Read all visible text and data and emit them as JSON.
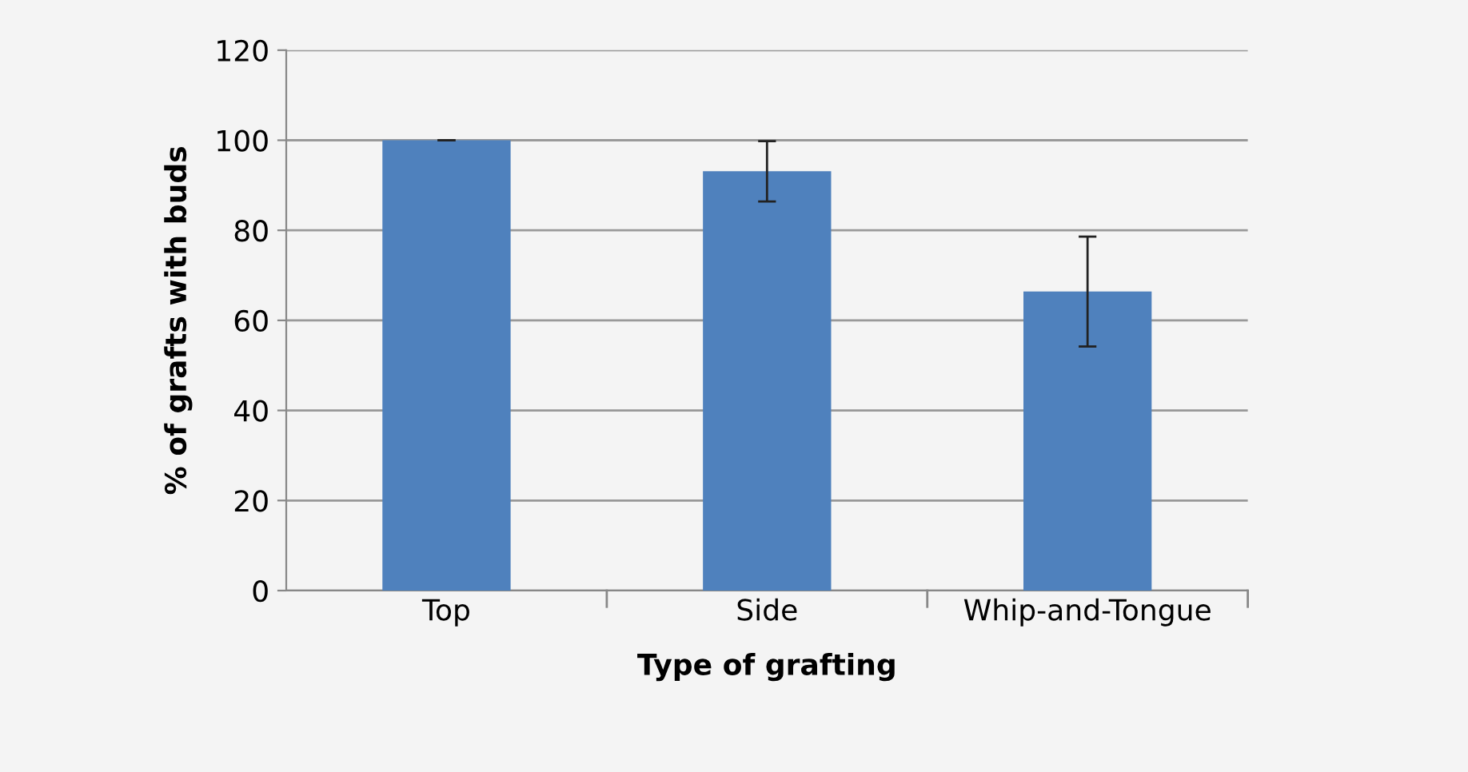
{
  "chart_data": {
    "type": "bar",
    "xlabel": "Type of grafting",
    "ylabel": "% of grafts with buds",
    "categories": [
      "Top",
      "Side",
      "Whip-and-Tongue"
    ],
    "values": [
      100,
      93.1,
      66.4
    ],
    "errors": [
      0,
      6.7,
      12.2
    ],
    "color": "#4f81bd",
    "ylim": [
      0,
      120
    ],
    "yticks": [
      0,
      20,
      40,
      60,
      80,
      100,
      120
    ],
    "grid": "y"
  }
}
